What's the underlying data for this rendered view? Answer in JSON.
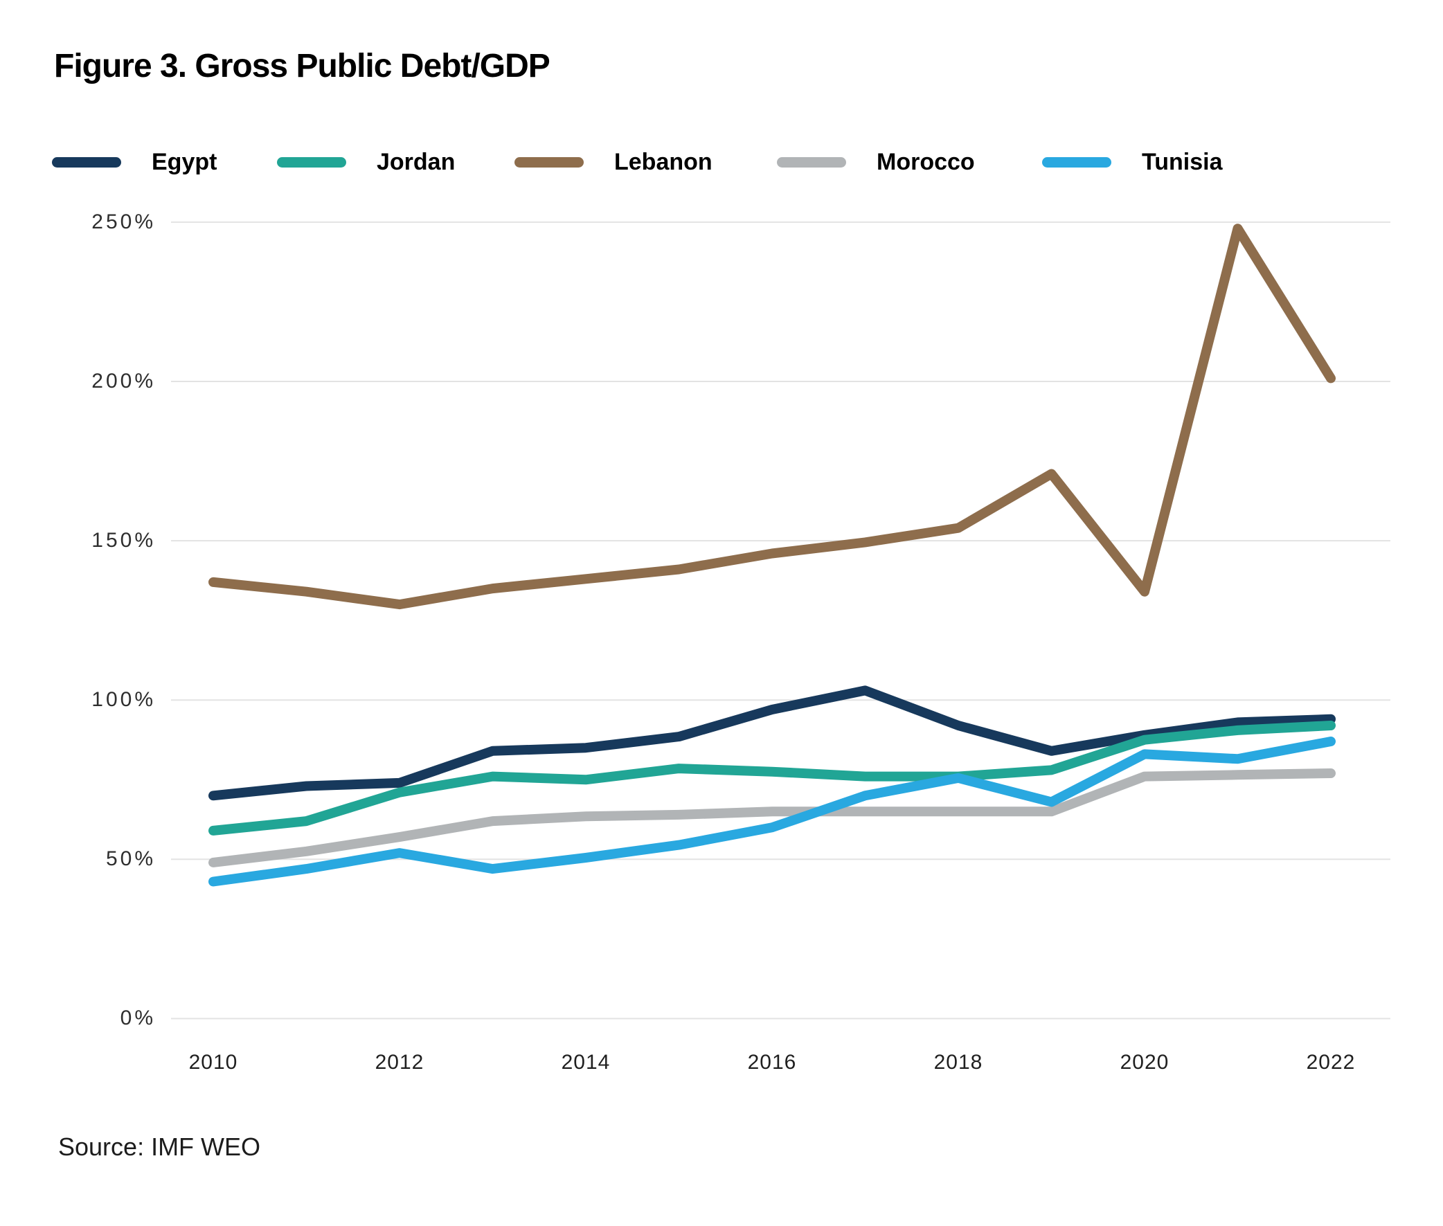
{
  "figure": {
    "title": "Figure 3. Gross Public Debt/GDP",
    "source": "Source: IMF WEO"
  },
  "chart_data": {
    "type": "line",
    "title": "Figure 3. Gross Public Debt/GDP",
    "x": [
      2010,
      2011,
      2012,
      2013,
      2014,
      2015,
      2016,
      2017,
      2018,
      2019,
      2020,
      2021,
      2022
    ],
    "series": [
      {
        "name": "Egypt",
        "color": "#17395c",
        "values": [
          70,
          73,
          74,
          84,
          85,
          88.5,
          97,
          103,
          92,
          84,
          89,
          93,
          94
        ]
      },
      {
        "name": "Jordan",
        "color": "#21a595",
        "values": [
          59,
          62,
          71,
          76,
          75,
          78.5,
          77.5,
          76,
          76,
          78,
          87.5,
          90.5,
          92
        ]
      },
      {
        "name": "Lebanon",
        "color": "#8e6d4c",
        "values": [
          137,
          134,
          130,
          135,
          138,
          141,
          146,
          149.5,
          154,
          171,
          134,
          248,
          201
        ]
      },
      {
        "name": "Morocco",
        "color": "#b1b4b6",
        "values": [
          49,
          52.5,
          57,
          62,
          63.5,
          64,
          65,
          65,
          65,
          65,
          76,
          76.5,
          77
        ]
      },
      {
        "name": "Tunisia",
        "color": "#29a8e0",
        "values": [
          43,
          47,
          52,
          47,
          50.5,
          54.5,
          60,
          70,
          75.5,
          68,
          83,
          81.5,
          87
        ]
      }
    ],
    "xlabel": "",
    "ylabel": "",
    "ylim": [
      0,
      250
    ],
    "y_tick_values": [
      250,
      200,
      150,
      100,
      50,
      0
    ],
    "y_tick_labels": [
      "250%",
      "200%",
      "150%",
      "100%",
      "50%",
      "0%"
    ],
    "x_tick_values": [
      2010,
      2012,
      2014,
      2016,
      2018,
      2020,
      2022
    ],
    "grid": "horizontal",
    "grid_color": "#e3e3e3",
    "legend_position": "top"
  }
}
